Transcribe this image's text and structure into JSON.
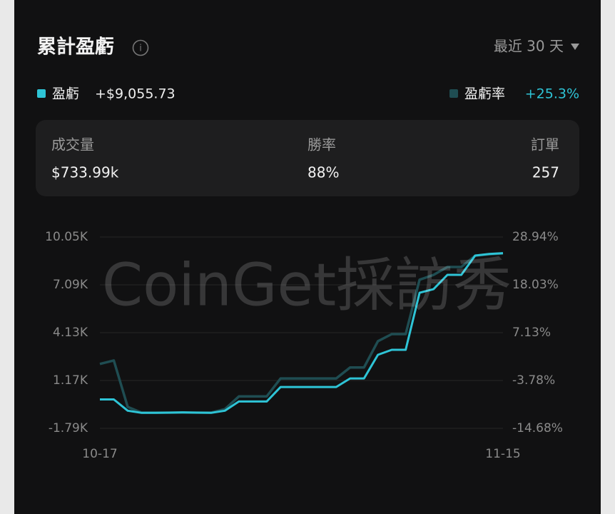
{
  "header": {
    "title": "累計盈虧",
    "range": "最近 30 天"
  },
  "summary": {
    "pnl": "+$9,055.73",
    "pnl_rate": "+25.3%"
  },
  "stats": [
    {
      "label": "成交量",
      "value": "$733.99k"
    },
    {
      "label": "勝率",
      "value": "88%"
    },
    {
      "label": "訂單",
      "value": "257"
    }
  ],
  "watermark": "CoinGet採訪秀",
  "chart_data": {
    "type": "line",
    "categories": [
      "10-17",
      null,
      null,
      null,
      null,
      null,
      null,
      null,
      null,
      null,
      null,
      null,
      null,
      null,
      null,
      null,
      null,
      null,
      null,
      null,
      null,
      null,
      null,
      null,
      null,
      null,
      null,
      null,
      null,
      "11-15"
    ],
    "series": [
      {
        "name": "盈虧",
        "color": "#2ec4d6",
        "axis": "y",
        "values": [
          0,
          0,
          -700,
          -830,
          -830,
          -820,
          -800,
          -820,
          -830,
          -700,
          -130,
          -130,
          -130,
          770,
          770,
          770,
          770,
          770,
          1300,
          1300,
          2760,
          3070,
          3070,
          6600,
          6820,
          7710,
          7710,
          8900,
          9000,
          9050
        ]
      },
      {
        "name": "盈虧率",
        "color": "#1f4d52",
        "axis": "y2",
        "values": [
          0.0,
          0.8,
          -9.8,
          -11.1,
          -11.1,
          -11.1,
          -11.1,
          -11.1,
          -11.1,
          -10.3,
          -7.4,
          -7.4,
          -7.4,
          -3.3,
          -3.3,
          -3.3,
          -3.3,
          -3.3,
          -0.8,
          -0.8,
          5.2,
          6.8,
          6.8,
          19.2,
          20.3,
          22.1,
          22.1,
          24.7,
          25.0,
          25.2
        ]
      }
    ],
    "ylim": [
      -1790,
      10050
    ],
    "yticks": [
      {
        "value": -1790,
        "label": "-1.79K"
      },
      {
        "value": 1170,
        "label": "1.17K"
      },
      {
        "value": 4130,
        "label": "4.13K"
      },
      {
        "value": 7090,
        "label": "7.09K"
      },
      {
        "value": 10050,
        "label": "10.05K"
      }
    ],
    "y2lim": [
      -14.68,
      28.94
    ],
    "y2ticks": [
      {
        "value": -14.68,
        "label": "-14.68%"
      },
      {
        "value": -3.78,
        "label": "-3.78%"
      },
      {
        "value": 7.13,
        "label": "7.13%"
      },
      {
        "value": 18.03,
        "label": "18.03%"
      },
      {
        "value": 28.94,
        "label": "28.94%"
      }
    ],
    "grid": true
  }
}
